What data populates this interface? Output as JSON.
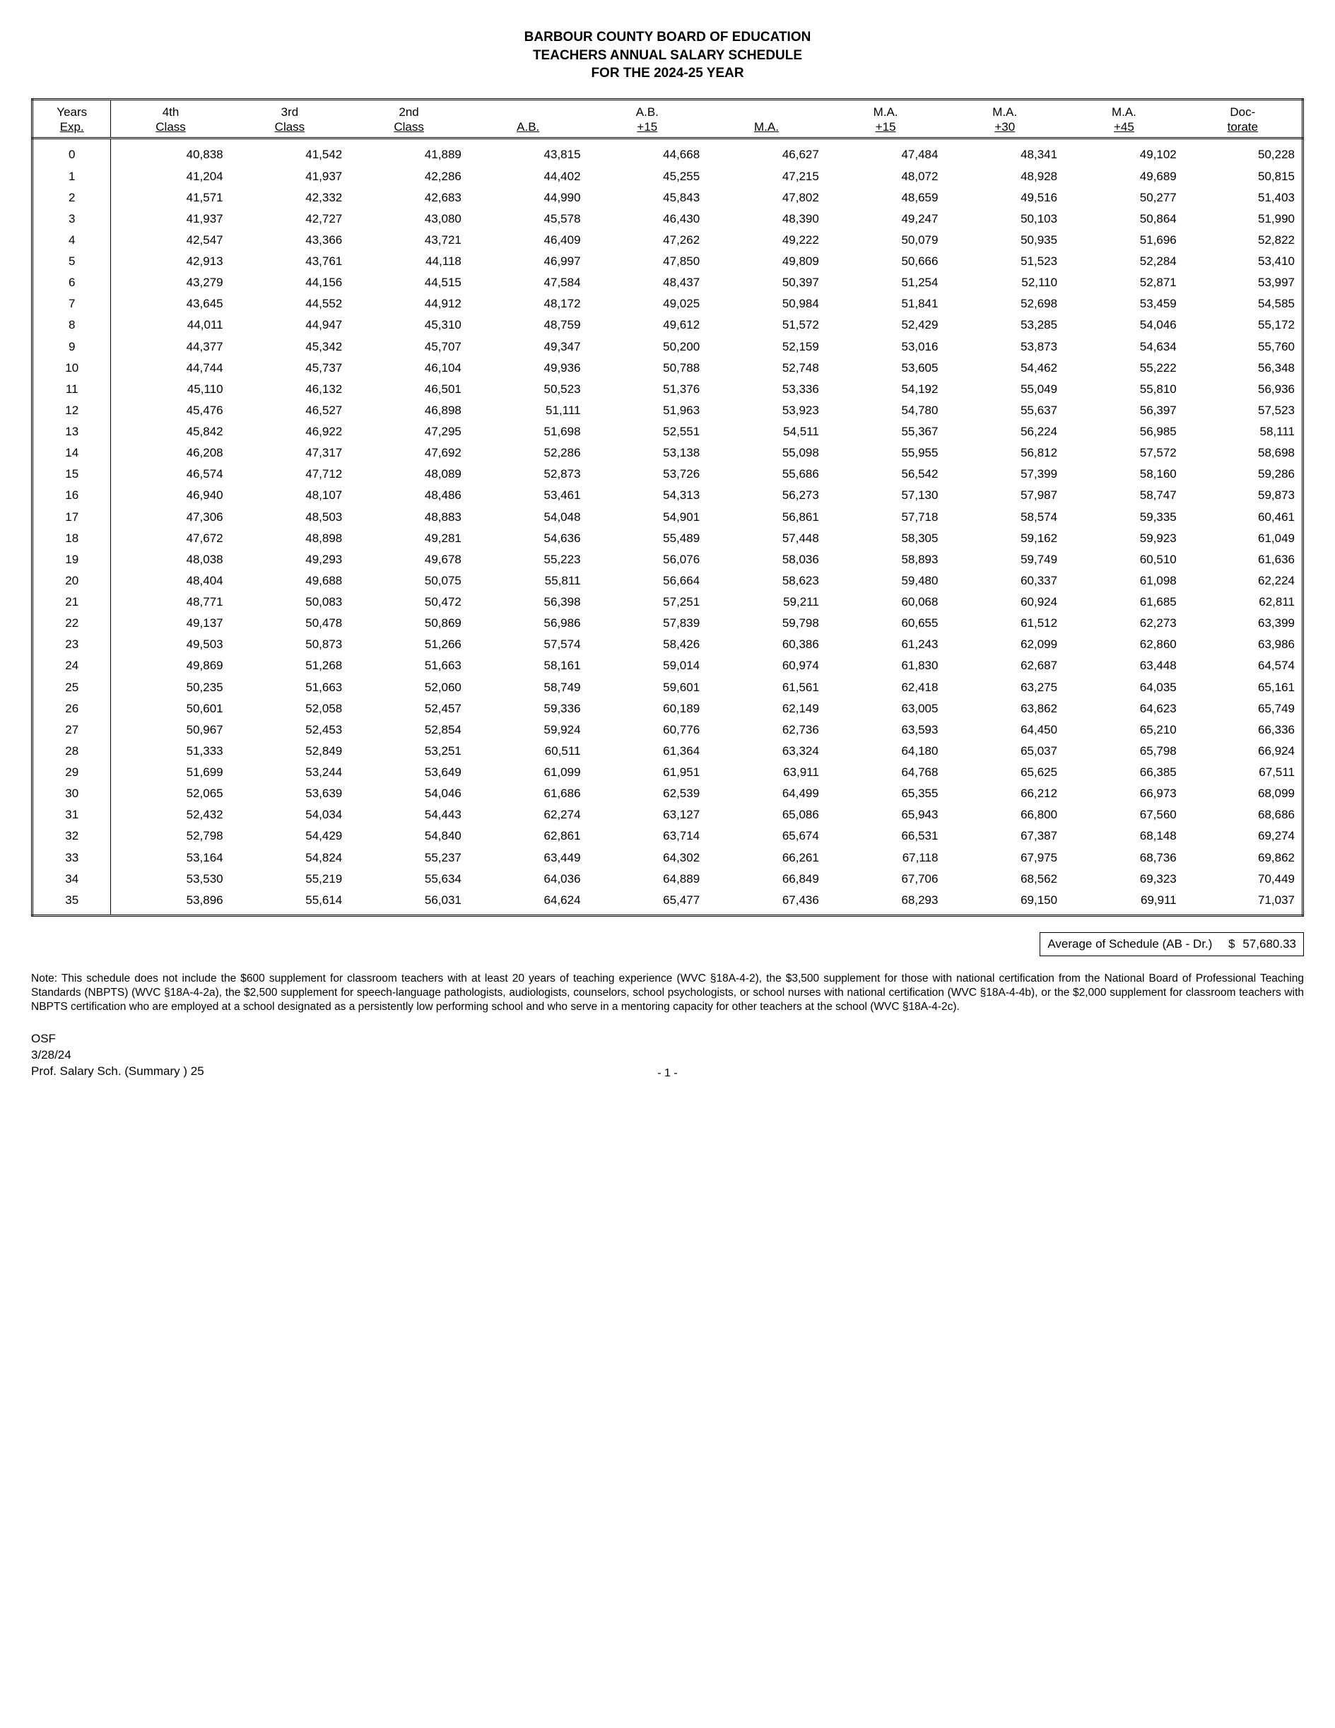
{
  "title": {
    "line1": "BARBOUR COUNTY BOARD OF EDUCATION",
    "line2": "TEACHERS ANNUAL SALARY SCHEDULE",
    "line3": "FOR THE 2024-25 YEAR"
  },
  "columns": [
    {
      "top": "Years",
      "bottom": "Exp."
    },
    {
      "top": "4th",
      "bottom": "Class"
    },
    {
      "top": "3rd",
      "bottom": "Class"
    },
    {
      "top": "2nd",
      "bottom": "Class"
    },
    {
      "top": "",
      "bottom": "A.B."
    },
    {
      "top": "A.B.",
      "bottom": "+15"
    },
    {
      "top": "",
      "bottom": "M.A."
    },
    {
      "top": "M.A.",
      "bottom": "+15"
    },
    {
      "top": "M.A.",
      "bottom": "+30"
    },
    {
      "top": "M.A.",
      "bottom": "+45"
    },
    {
      "top": "Doc-",
      "bottom": "torate"
    }
  ],
  "rows": [
    [
      "0",
      "40,838",
      "41,542",
      "41,889",
      "43,815",
      "44,668",
      "46,627",
      "47,484",
      "48,341",
      "49,102",
      "50,228"
    ],
    [
      "1",
      "41,204",
      "41,937",
      "42,286",
      "44,402",
      "45,255",
      "47,215",
      "48,072",
      "48,928",
      "49,689",
      "50,815"
    ],
    [
      "2",
      "41,571",
      "42,332",
      "42,683",
      "44,990",
      "45,843",
      "47,802",
      "48,659",
      "49,516",
      "50,277",
      "51,403"
    ],
    [
      "3",
      "41,937",
      "42,727",
      "43,080",
      "45,578",
      "46,430",
      "48,390",
      "49,247",
      "50,103",
      "50,864",
      "51,990"
    ],
    [
      "4",
      "42,547",
      "43,366",
      "43,721",
      "46,409",
      "47,262",
      "49,222",
      "50,079",
      "50,935",
      "51,696",
      "52,822"
    ],
    [
      "5",
      "42,913",
      "43,761",
      "44,118",
      "46,997",
      "47,850",
      "49,809",
      "50,666",
      "51,523",
      "52,284",
      "53,410"
    ],
    [
      "6",
      "43,279",
      "44,156",
      "44,515",
      "47,584",
      "48,437",
      "50,397",
      "51,254",
      "52,110",
      "52,871",
      "53,997"
    ],
    [
      "7",
      "43,645",
      "44,552",
      "44,912",
      "48,172",
      "49,025",
      "50,984",
      "51,841",
      "52,698",
      "53,459",
      "54,585"
    ],
    [
      "8",
      "44,011",
      "44,947",
      "45,310",
      "48,759",
      "49,612",
      "51,572",
      "52,429",
      "53,285",
      "54,046",
      "55,172"
    ],
    [
      "9",
      "44,377",
      "45,342",
      "45,707",
      "49,347",
      "50,200",
      "52,159",
      "53,016",
      "53,873",
      "54,634",
      "55,760"
    ],
    [
      "10",
      "44,744",
      "45,737",
      "46,104",
      "49,936",
      "50,788",
      "52,748",
      "53,605",
      "54,462",
      "55,222",
      "56,348"
    ],
    [
      "11",
      "45,110",
      "46,132",
      "46,501",
      "50,523",
      "51,376",
      "53,336",
      "54,192",
      "55,049",
      "55,810",
      "56,936"
    ],
    [
      "12",
      "45,476",
      "46,527",
      "46,898",
      "51,111",
      "51,963",
      "53,923",
      "54,780",
      "55,637",
      "56,397",
      "57,523"
    ],
    [
      "13",
      "45,842",
      "46,922",
      "47,295",
      "51,698",
      "52,551",
      "54,511",
      "55,367",
      "56,224",
      "56,985",
      "58,111"
    ],
    [
      "14",
      "46,208",
      "47,317",
      "47,692",
      "52,286",
      "53,138",
      "55,098",
      "55,955",
      "56,812",
      "57,572",
      "58,698"
    ],
    [
      "15",
      "46,574",
      "47,712",
      "48,089",
      "52,873",
      "53,726",
      "55,686",
      "56,542",
      "57,399",
      "58,160",
      "59,286"
    ],
    [
      "16",
      "46,940",
      "48,107",
      "48,486",
      "53,461",
      "54,313",
      "56,273",
      "57,130",
      "57,987",
      "58,747",
      "59,873"
    ],
    [
      "17",
      "47,306",
      "48,503",
      "48,883",
      "54,048",
      "54,901",
      "56,861",
      "57,718",
      "58,574",
      "59,335",
      "60,461"
    ],
    [
      "18",
      "47,672",
      "48,898",
      "49,281",
      "54,636",
      "55,489",
      "57,448",
      "58,305",
      "59,162",
      "59,923",
      "61,049"
    ],
    [
      "19",
      "48,038",
      "49,293",
      "49,678",
      "55,223",
      "56,076",
      "58,036",
      "58,893",
      "59,749",
      "60,510",
      "61,636"
    ],
    [
      "20",
      "48,404",
      "49,688",
      "50,075",
      "55,811",
      "56,664",
      "58,623",
      "59,480",
      "60,337",
      "61,098",
      "62,224"
    ],
    [
      "21",
      "48,771",
      "50,083",
      "50,472",
      "56,398",
      "57,251",
      "59,211",
      "60,068",
      "60,924",
      "61,685",
      "62,811"
    ],
    [
      "22",
      "49,137",
      "50,478",
      "50,869",
      "56,986",
      "57,839",
      "59,798",
      "60,655",
      "61,512",
      "62,273",
      "63,399"
    ],
    [
      "23",
      "49,503",
      "50,873",
      "51,266",
      "57,574",
      "58,426",
      "60,386",
      "61,243",
      "62,099",
      "62,860",
      "63,986"
    ],
    [
      "24",
      "49,869",
      "51,268",
      "51,663",
      "58,161",
      "59,014",
      "60,974",
      "61,830",
      "62,687",
      "63,448",
      "64,574"
    ],
    [
      "25",
      "50,235",
      "51,663",
      "52,060",
      "58,749",
      "59,601",
      "61,561",
      "62,418",
      "63,275",
      "64,035",
      "65,161"
    ],
    [
      "26",
      "50,601",
      "52,058",
      "52,457",
      "59,336",
      "60,189",
      "62,149",
      "63,005",
      "63,862",
      "64,623",
      "65,749"
    ],
    [
      "27",
      "50,967",
      "52,453",
      "52,854",
      "59,924",
      "60,776",
      "62,736",
      "63,593",
      "64,450",
      "65,210",
      "66,336"
    ],
    [
      "28",
      "51,333",
      "52,849",
      "53,251",
      "60,511",
      "61,364",
      "63,324",
      "64,180",
      "65,037",
      "65,798",
      "66,924"
    ],
    [
      "29",
      "51,699",
      "53,244",
      "53,649",
      "61,099",
      "61,951",
      "63,911",
      "64,768",
      "65,625",
      "66,385",
      "67,511"
    ],
    [
      "30",
      "52,065",
      "53,639",
      "54,046",
      "61,686",
      "62,539",
      "64,499",
      "65,355",
      "66,212",
      "66,973",
      "68,099"
    ],
    [
      "31",
      "52,432",
      "54,034",
      "54,443",
      "62,274",
      "63,127",
      "65,086",
      "65,943",
      "66,800",
      "67,560",
      "68,686"
    ],
    [
      "32",
      "52,798",
      "54,429",
      "54,840",
      "62,861",
      "63,714",
      "65,674",
      "66,531",
      "67,387",
      "68,148",
      "69,274"
    ],
    [
      "33",
      "53,164",
      "54,824",
      "55,237",
      "63,449",
      "64,302",
      "66,261",
      "67,118",
      "67,975",
      "68,736",
      "69,862"
    ],
    [
      "34",
      "53,530",
      "55,219",
      "55,634",
      "64,036",
      "64,889",
      "66,849",
      "67,706",
      "68,562",
      "69,323",
      "70,449"
    ],
    [
      "35",
      "53,896",
      "55,614",
      "56,031",
      "64,624",
      "65,477",
      "67,436",
      "68,293",
      "69,150",
      "69,911",
      "71,037"
    ]
  ],
  "average": {
    "label": "Average of Schedule (AB - Dr.)",
    "currency": "$",
    "value": "57,680.33"
  },
  "note": "Note:  This schedule does not include the $600 supplement for classroom teachers with at least 20 years of teaching experience (WVC §18A-4-2), the $3,500 supplement for those with national certification from the National Board of Professional Teaching Standards (NBPTS) (WVC  §18A-4-2a), the $2,500 supplement for speech-language pathologists, audiologists, counselors, school psychologists, or school nurses with national certification (WVC  §18A-4-4b), or the $2,000 supplement for classroom teachers with NBPTS certification who are employed at a school designated as a persistently low performing school and who serve in a mentoring capacity for other teachers at the school (WVC §18A-4-2c).",
  "footer": {
    "org": "OSF",
    "date": "3/28/24",
    "doc": "Prof. Salary Sch. (Summary ) 25",
    "page": "- 1 -"
  }
}
